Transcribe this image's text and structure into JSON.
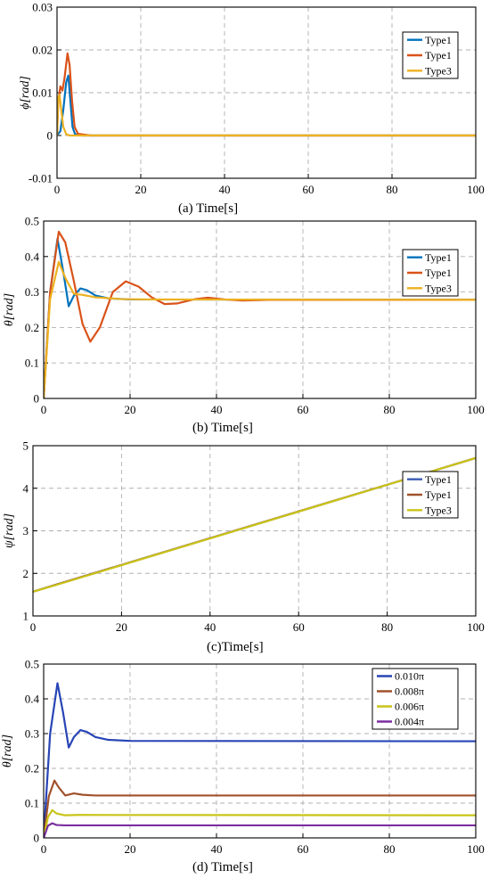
{
  "chart_data": [
    {
      "type": "line",
      "caption": "(a)   Time[s]",
      "ylabel": "ϕ[rad]",
      "xlim": [
        0,
        100
      ],
      "ylim": [
        -0.01,
        0.03
      ],
      "xticks": [
        "0",
        "20",
        "40",
        "60",
        "80",
        "100"
      ],
      "yticks": [
        "-0.01",
        "0",
        "0.01",
        "0.02",
        "0.03"
      ],
      "grid": true,
      "legend_position": "top-right",
      "series": [
        {
          "name": "Type1",
          "color": "#0072BD",
          "points": [
            [
              0,
              0
            ],
            [
              0.8,
              0.001
            ],
            [
              1.5,
              0.006
            ],
            [
              2.2,
              0.0125
            ],
            [
              2.7,
              0.014
            ],
            [
              3.2,
              0.008
            ],
            [
              3.7,
              0.002
            ],
            [
              4.3,
              0.0003
            ],
            [
              6,
              0
            ],
            [
              100,
              0
            ]
          ]
        },
        {
          "name": "Type1",
          "color": "#D95319",
          "points": [
            [
              0,
              0
            ],
            [
              0.3,
              0.008
            ],
            [
              0.8,
              0.0115
            ],
            [
              1.3,
              0.0105
            ],
            [
              1.8,
              0.0135
            ],
            [
              2.5,
              0.0192
            ],
            [
              3.0,
              0.0165
            ],
            [
              3.6,
              0.008
            ],
            [
              4.2,
              0.002
            ],
            [
              5,
              0.0004
            ],
            [
              8,
              0
            ],
            [
              100,
              0
            ]
          ]
        },
        {
          "name": "Type3",
          "color": "#EDB120",
          "points": [
            [
              0,
              0
            ],
            [
              0.3,
              0.009
            ],
            [
              0.6,
              0.0095
            ],
            [
              1.0,
              0.006
            ],
            [
              1.5,
              0.002
            ],
            [
              2.2,
              0.0003
            ],
            [
              3,
              0
            ],
            [
              100,
              0
            ]
          ]
        }
      ]
    },
    {
      "type": "line",
      "caption": "(b)  Time[s]",
      "ylabel": "θ[rad]",
      "xlim": [
        0,
        100
      ],
      "ylim": [
        0,
        0.5
      ],
      "xticks": [
        "0",
        "20",
        "40",
        "60",
        "80",
        "100"
      ],
      "yticks": [
        "0",
        "0.1",
        "0.2",
        "0.3",
        "0.4",
        "0.5"
      ],
      "grid": true,
      "legend_position": "top-right",
      "series": [
        {
          "name": "Type1",
          "color": "#0072BD",
          "points": [
            [
              0,
              0
            ],
            [
              1.5,
              0.3
            ],
            [
              3.2,
              0.45
            ],
            [
              4.5,
              0.36
            ],
            [
              5.8,
              0.26
            ],
            [
              7,
              0.29
            ],
            [
              8.5,
              0.31
            ],
            [
              10,
              0.305
            ],
            [
              12,
              0.29
            ],
            [
              15,
              0.282
            ],
            [
              20,
              0.279
            ],
            [
              100,
              0.278
            ]
          ]
        },
        {
          "name": "Type1",
          "color": "#D95319",
          "points": [
            [
              0,
              0
            ],
            [
              1.5,
              0.3
            ],
            [
              3.5,
              0.47
            ],
            [
              5,
              0.44
            ],
            [
              7,
              0.33
            ],
            [
              9,
              0.21
            ],
            [
              10.8,
              0.16
            ],
            [
              13,
              0.2
            ],
            [
              16,
              0.3
            ],
            [
              19,
              0.33
            ],
            [
              22,
              0.315
            ],
            [
              25,
              0.285
            ],
            [
              28,
              0.266
            ],
            [
              31,
              0.268
            ],
            [
              35,
              0.28
            ],
            [
              38,
              0.284
            ],
            [
              42,
              0.279
            ],
            [
              46,
              0.276
            ],
            [
              52,
              0.278
            ],
            [
              100,
              0.278
            ]
          ]
        },
        {
          "name": "Type3",
          "color": "#EDB120",
          "points": [
            [
              0,
              0
            ],
            [
              1.5,
              0.28
            ],
            [
              3.5,
              0.385
            ],
            [
              5,
              0.34
            ],
            [
              7,
              0.295
            ],
            [
              9,
              0.292
            ],
            [
              12,
              0.285
            ],
            [
              18,
              0.28
            ],
            [
              25,
              0.279
            ],
            [
              100,
              0.278
            ]
          ]
        }
      ]
    },
    {
      "type": "line",
      "caption": "(c)Time[s]",
      "ylabel": "ψ[rad]",
      "xlim": [
        0,
        100
      ],
      "ylim": [
        1,
        5
      ],
      "xticks": [
        "0",
        "20",
        "40",
        "60",
        "80",
        "100"
      ],
      "yticks": [
        "1",
        "2",
        "3",
        "4",
        "5"
      ],
      "grid": true,
      "legend_position": "top-right",
      "series": [
        {
          "name": "Type1",
          "color": "#3B5BB5",
          "points": [
            [
              0,
              1.57
            ],
            [
              100,
              4.71
            ]
          ]
        },
        {
          "name": "Type1",
          "color": "#A0522D",
          "points": [
            [
              0,
              1.57
            ],
            [
              100,
              4.71
            ]
          ]
        },
        {
          "name": "Type3",
          "color": "#C9C418",
          "points": [
            [
              0,
              1.57
            ],
            [
              3,
              1.66
            ],
            [
              5,
              1.72
            ],
            [
              100,
              4.71
            ]
          ]
        }
      ]
    },
    {
      "type": "line",
      "caption": "(d)  Time[s]",
      "ylabel": "θ[rad]",
      "xlim": [
        0,
        100
      ],
      "ylim": [
        0,
        0.5
      ],
      "xticks": [
        "0",
        "20",
        "40",
        "60",
        "80",
        "100"
      ],
      "yticks": [
        "0",
        "0.1",
        "0.2",
        "0.3",
        "0.4",
        "0.5"
      ],
      "grid": true,
      "legend_position": "top-right",
      "series": [
        {
          "name": "0.010π",
          "color": "#2845B5",
          "points": [
            [
              0,
              0
            ],
            [
              1.5,
              0.3
            ],
            [
              3.2,
              0.445
            ],
            [
              4.5,
              0.36
            ],
            [
              5.8,
              0.26
            ],
            [
              7,
              0.29
            ],
            [
              8.5,
              0.31
            ],
            [
              10,
              0.305
            ],
            [
              12,
              0.29
            ],
            [
              15,
              0.282
            ],
            [
              20,
              0.279
            ],
            [
              100,
              0.278
            ]
          ]
        },
        {
          "name": "0.008π",
          "color": "#A0522D",
          "points": [
            [
              0,
              0
            ],
            [
              1.2,
              0.12
            ],
            [
              2.5,
              0.165
            ],
            [
              3.5,
              0.145
            ],
            [
              5,
              0.122
            ],
            [
              7,
              0.128
            ],
            [
              9,
              0.124
            ],
            [
              12,
              0.122
            ],
            [
              100,
              0.122
            ]
          ]
        },
        {
          "name": "0.006π",
          "color": "#C9C418",
          "points": [
            [
              0,
              0
            ],
            [
              1,
              0.06
            ],
            [
              2,
              0.08
            ],
            [
              3,
              0.07
            ],
            [
              5,
              0.065
            ],
            [
              8,
              0.066
            ],
            [
              100,
              0.065
            ]
          ]
        },
        {
          "name": "0.004π",
          "color": "#7B2FA0",
          "points": [
            [
              0,
              0
            ],
            [
              1,
              0.035
            ],
            [
              2,
              0.042
            ],
            [
              3,
              0.037
            ],
            [
              5,
              0.036
            ],
            [
              100,
              0.036
            ]
          ]
        }
      ]
    }
  ]
}
